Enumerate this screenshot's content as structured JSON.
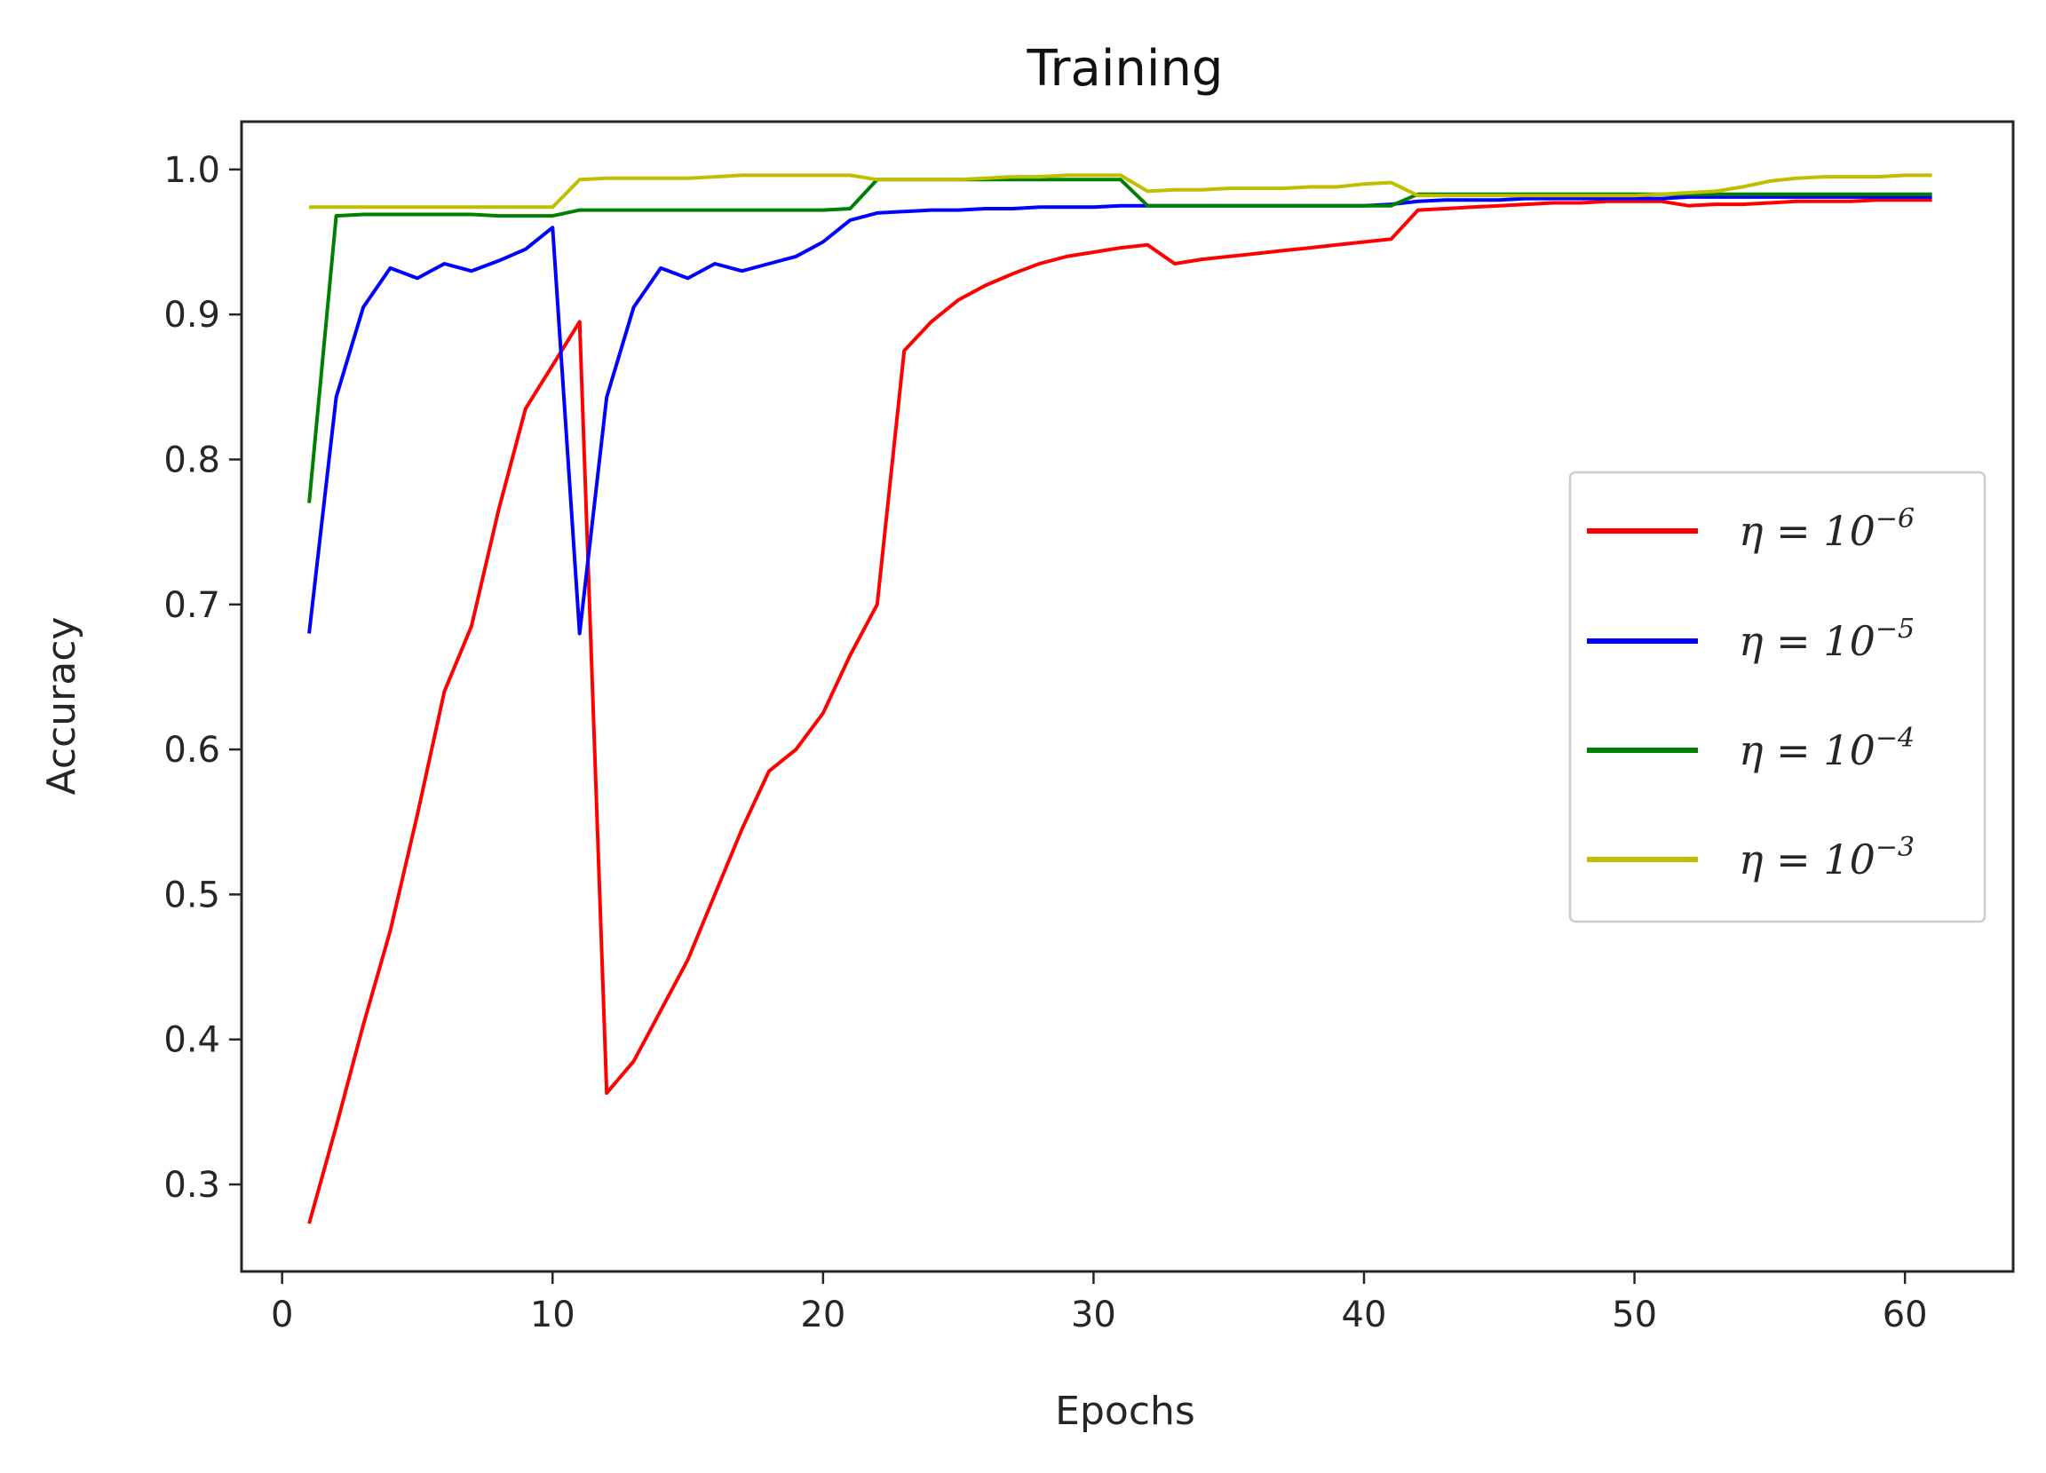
{
  "chart_data": {
    "type": "line",
    "title": "Training",
    "xlabel": "Epochs",
    "ylabel": "Accuracy",
    "xlim": [
      -1.5,
      64
    ],
    "ylim": [
      0.24,
      1.033
    ],
    "xticks": [
      0,
      10,
      20,
      30,
      40,
      50,
      60
    ],
    "yticks": [
      0.3,
      0.4,
      0.5,
      0.6,
      0.7,
      0.8,
      0.9,
      1.0
    ],
    "xtick_labels": [
      "0",
      "10",
      "20",
      "30",
      "40",
      "50",
      "60"
    ],
    "ytick_labels": [
      "0.3",
      "0.4",
      "0.5",
      "0.6",
      "0.7",
      "0.8",
      "0.9",
      "1.0"
    ],
    "grid": false,
    "legend_position": "center-right",
    "series": [
      {
        "name": "η = 10⁻⁶",
        "legend_base": "η = 10",
        "legend_exp": "−6",
        "color": "#ff0000",
        "points": [
          [
            1,
            0.273
          ],
          [
            2,
            0.34
          ],
          [
            3,
            0.41
          ],
          [
            4,
            0.475
          ],
          [
            5,
            0.555
          ],
          [
            6,
            0.64
          ],
          [
            7,
            0.685
          ],
          [
            8,
            0.765
          ],
          [
            9,
            0.835
          ],
          [
            10,
            0.865
          ],
          [
            11,
            0.895
          ],
          [
            12,
            0.363
          ],
          [
            13,
            0.385
          ],
          [
            14,
            0.42
          ],
          [
            15,
            0.455
          ],
          [
            16,
            0.5
          ],
          [
            17,
            0.545
          ],
          [
            18,
            0.585
          ],
          [
            19,
            0.6
          ],
          [
            20,
            0.625
          ],
          [
            21,
            0.665
          ],
          [
            22,
            0.7
          ],
          [
            23,
            0.875
          ],
          [
            24,
            0.895
          ],
          [
            25,
            0.91
          ],
          [
            26,
            0.92
          ],
          [
            27,
            0.928
          ],
          [
            28,
            0.935
          ],
          [
            29,
            0.94
          ],
          [
            30,
            0.943
          ],
          [
            31,
            0.946
          ],
          [
            32,
            0.948
          ],
          [
            33,
            0.935
          ],
          [
            34,
            0.938
          ],
          [
            35,
            0.94
          ],
          [
            36,
            0.942
          ],
          [
            37,
            0.944
          ],
          [
            38,
            0.946
          ],
          [
            39,
            0.948
          ],
          [
            40,
            0.95
          ],
          [
            41,
            0.952
          ],
          [
            42,
            0.972
          ],
          [
            43,
            0.973
          ],
          [
            44,
            0.974
          ],
          [
            45,
            0.975
          ],
          [
            46,
            0.976
          ],
          [
            47,
            0.977
          ],
          [
            48,
            0.977
          ],
          [
            49,
            0.978
          ],
          [
            50,
            0.978
          ],
          [
            51,
            0.978
          ],
          [
            52,
            0.975
          ],
          [
            53,
            0.976
          ],
          [
            54,
            0.976
          ],
          [
            55,
            0.977
          ],
          [
            56,
            0.978
          ],
          [
            57,
            0.978
          ],
          [
            58,
            0.978
          ],
          [
            59,
            0.979
          ],
          [
            60,
            0.979
          ],
          [
            61,
            0.979
          ]
        ]
      },
      {
        "name": "η = 10⁻⁵",
        "legend_base": "η = 10",
        "legend_exp": "−5",
        "color": "#0000ff",
        "points": [
          [
            1,
            0.68
          ],
          [
            2,
            0.843
          ],
          [
            3,
            0.905
          ],
          [
            4,
            0.932
          ],
          [
            5,
            0.925
          ],
          [
            6,
            0.935
          ],
          [
            7,
            0.93
          ],
          [
            8,
            0.937
          ],
          [
            9,
            0.945
          ],
          [
            10,
            0.96
          ],
          [
            11,
            0.68
          ],
          [
            12,
            0.843
          ],
          [
            13,
            0.905
          ],
          [
            14,
            0.932
          ],
          [
            15,
            0.925
          ],
          [
            16,
            0.935
          ],
          [
            17,
            0.93
          ],
          [
            18,
            0.935
          ],
          [
            19,
            0.94
          ],
          [
            20,
            0.95
          ],
          [
            21,
            0.965
          ],
          [
            22,
            0.97
          ],
          [
            23,
            0.971
          ],
          [
            24,
            0.972
          ],
          [
            25,
            0.972
          ],
          [
            26,
            0.973
          ],
          [
            27,
            0.973
          ],
          [
            28,
            0.974
          ],
          [
            29,
            0.974
          ],
          [
            30,
            0.974
          ],
          [
            31,
            0.975
          ],
          [
            32,
            0.975
          ],
          [
            33,
            0.975
          ],
          [
            34,
            0.975
          ],
          [
            35,
            0.975
          ],
          [
            36,
            0.975
          ],
          [
            37,
            0.975
          ],
          [
            38,
            0.975
          ],
          [
            39,
            0.975
          ],
          [
            40,
            0.975
          ],
          [
            41,
            0.976
          ],
          [
            42,
            0.978
          ],
          [
            43,
            0.979
          ],
          [
            44,
            0.979
          ],
          [
            45,
            0.979
          ],
          [
            46,
            0.98
          ],
          [
            47,
            0.98
          ],
          [
            48,
            0.98
          ],
          [
            49,
            0.98
          ],
          [
            50,
            0.98
          ],
          [
            51,
            0.98
          ],
          [
            52,
            0.981
          ],
          [
            53,
            0.981
          ],
          [
            54,
            0.981
          ],
          [
            55,
            0.981
          ],
          [
            56,
            0.981
          ],
          [
            57,
            0.981
          ],
          [
            58,
            0.981
          ],
          [
            59,
            0.981
          ],
          [
            60,
            0.981
          ],
          [
            61,
            0.981
          ]
        ]
      },
      {
        "name": "η = 10⁻⁴",
        "legend_base": "η = 10",
        "legend_exp": "−4",
        "color": "#008000",
        "points": [
          [
            1,
            0.77
          ],
          [
            2,
            0.968
          ],
          [
            3,
            0.969
          ],
          [
            4,
            0.969
          ],
          [
            5,
            0.969
          ],
          [
            6,
            0.969
          ],
          [
            7,
            0.969
          ],
          [
            8,
            0.968
          ],
          [
            9,
            0.968
          ],
          [
            10,
            0.968
          ],
          [
            11,
            0.972
          ],
          [
            12,
            0.972
          ],
          [
            13,
            0.972
          ],
          [
            14,
            0.972
          ],
          [
            15,
            0.972
          ],
          [
            16,
            0.972
          ],
          [
            17,
            0.972
          ],
          [
            18,
            0.972
          ],
          [
            19,
            0.972
          ],
          [
            20,
            0.972
          ],
          [
            21,
            0.973
          ],
          [
            22,
            0.993
          ],
          [
            23,
            0.993
          ],
          [
            24,
            0.993
          ],
          [
            25,
            0.993
          ],
          [
            26,
            0.993
          ],
          [
            27,
            0.993
          ],
          [
            28,
            0.993
          ],
          [
            29,
            0.993
          ],
          [
            30,
            0.993
          ],
          [
            31,
            0.993
          ],
          [
            32,
            0.975
          ],
          [
            33,
            0.975
          ],
          [
            34,
            0.975
          ],
          [
            35,
            0.975
          ],
          [
            36,
            0.975
          ],
          [
            37,
            0.975
          ],
          [
            38,
            0.975
          ],
          [
            39,
            0.975
          ],
          [
            40,
            0.975
          ],
          [
            41,
            0.975
          ],
          [
            42,
            0.983
          ],
          [
            43,
            0.983
          ],
          [
            44,
            0.983
          ],
          [
            45,
            0.983
          ],
          [
            46,
            0.983
          ],
          [
            47,
            0.983
          ],
          [
            48,
            0.983
          ],
          [
            49,
            0.983
          ],
          [
            50,
            0.983
          ],
          [
            51,
            0.983
          ],
          [
            52,
            0.983
          ],
          [
            53,
            0.983
          ],
          [
            54,
            0.983
          ],
          [
            55,
            0.983
          ],
          [
            56,
            0.983
          ],
          [
            57,
            0.983
          ],
          [
            58,
            0.983
          ],
          [
            59,
            0.983
          ],
          [
            60,
            0.983
          ],
          [
            61,
            0.983
          ]
        ]
      },
      {
        "name": "η = 10⁻³",
        "legend_base": "η = 10",
        "legend_exp": "−3",
        "color": "#bfbf00",
        "points": [
          [
            1,
            0.974
          ],
          [
            2,
            0.974
          ],
          [
            3,
            0.974
          ],
          [
            4,
            0.974
          ],
          [
            5,
            0.974
          ],
          [
            6,
            0.974
          ],
          [
            7,
            0.974
          ],
          [
            8,
            0.974
          ],
          [
            9,
            0.974
          ],
          [
            10,
            0.974
          ],
          [
            11,
            0.993
          ],
          [
            12,
            0.994
          ],
          [
            13,
            0.994
          ],
          [
            14,
            0.994
          ],
          [
            15,
            0.994
          ],
          [
            16,
            0.995
          ],
          [
            17,
            0.996
          ],
          [
            18,
            0.996
          ],
          [
            19,
            0.996
          ],
          [
            20,
            0.996
          ],
          [
            21,
            0.996
          ],
          [
            22,
            0.993
          ],
          [
            23,
            0.993
          ],
          [
            24,
            0.993
          ],
          [
            25,
            0.993
          ],
          [
            26,
            0.994
          ],
          [
            27,
            0.995
          ],
          [
            28,
            0.995
          ],
          [
            29,
            0.996
          ],
          [
            30,
            0.996
          ],
          [
            31,
            0.996
          ],
          [
            32,
            0.985
          ],
          [
            33,
            0.986
          ],
          [
            34,
            0.986
          ],
          [
            35,
            0.987
          ],
          [
            36,
            0.987
          ],
          [
            37,
            0.987
          ],
          [
            38,
            0.988
          ],
          [
            39,
            0.988
          ],
          [
            40,
            0.99
          ],
          [
            41,
            0.991
          ],
          [
            42,
            0.982
          ],
          [
            43,
            0.982
          ],
          [
            44,
            0.982
          ],
          [
            45,
            0.982
          ],
          [
            46,
            0.982
          ],
          [
            47,
            0.982
          ],
          [
            48,
            0.982
          ],
          [
            49,
            0.982
          ],
          [
            50,
            0.982
          ],
          [
            51,
            0.983
          ],
          [
            52,
            0.984
          ],
          [
            53,
            0.985
          ],
          [
            54,
            0.988
          ],
          [
            55,
            0.992
          ],
          [
            56,
            0.994
          ],
          [
            57,
            0.995
          ],
          [
            58,
            0.995
          ],
          [
            59,
            0.995
          ],
          [
            60,
            0.996
          ],
          [
            61,
            0.996
          ]
        ]
      }
    ]
  }
}
